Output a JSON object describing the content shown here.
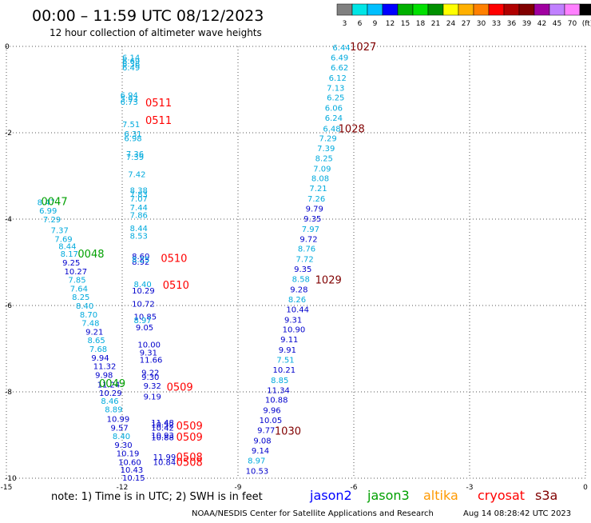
{
  "header": {
    "title": "00:00 – 11:59 UTC 08/12/2023",
    "subtitle": "12 hour collection of altimeter wave heights"
  },
  "colorbar": {
    "labels": [
      "3",
      "6",
      "9",
      "12",
      "15",
      "18",
      "21",
      "24",
      "27",
      "30",
      "33",
      "36",
      "39",
      "42",
      "45",
      "70",
      "(ft)"
    ],
    "colors": [
      "#808080",
      "#00e5e5",
      "#00bfff",
      "#0000ff",
      "#00b000",
      "#00e000",
      "#009000",
      "#ffff00",
      "#ffb000",
      "#ff8000",
      "#ff0000",
      "#b00000",
      "#800000",
      "#a000a0",
      "#c080ff",
      "#ff80ff",
      "#000000"
    ]
  },
  "footer": {
    "note": "note: 1) Time is in UTC; 2) SWH is in feet",
    "credit": "NOAA/NESDIS Center for Satellite Applications and Research",
    "timestamp": "Aug 14 08:28:42 UTC 2023",
    "missions": [
      {
        "name": "jason2",
        "color": "#0000ff"
      },
      {
        "name": "jason3",
        "color": "#00a000"
      },
      {
        "name": "altika",
        "color": "#ff9900"
      },
      {
        "name": "cryosat",
        "color": "#ff0000"
      },
      {
        "name": "s3a",
        "color": "#800000"
      }
    ]
  },
  "chart_data": {
    "type": "scatter",
    "title": "00:00 – 11:59 UTC 08/12/2023",
    "xlim": [
      -15,
      0
    ],
    "ylim": [
      -10,
      0
    ],
    "x_ticks": [
      -15,
      -12,
      -9,
      -6,
      -3,
      0
    ],
    "y_ticks": [
      0,
      -2,
      -4,
      -6,
      -8,
      -10
    ],
    "grid": true,
    "colors": {
      "c1": "#00aadd",
      "c2": "#0000cc",
      "pass_red": "#ff0000",
      "pass_green": "#00a000",
      "pass_maroon": "#800000"
    },
    "points": [
      {
        "x": -12.0,
        "y": -0.25,
        "v": "6.14",
        "c": "c1"
      },
      {
        "x": -12.0,
        "y": -0.33,
        "v": "6.69",
        "c": "c1"
      },
      {
        "x": -12.0,
        "y": -0.4,
        "v": "6.36",
        "c": "c1"
      },
      {
        "x": -12.0,
        "y": -0.48,
        "v": "6.49",
        "c": "c1"
      },
      {
        "x": -12.05,
        "y": -1.12,
        "v": "6.94",
        "c": "c1"
      },
      {
        "x": -12.05,
        "y": -1.2,
        "v": "5.93",
        "c": "c1"
      },
      {
        "x": -12.05,
        "y": -1.28,
        "v": "6.73",
        "c": "c1"
      },
      {
        "x": -12.0,
        "y": -1.8,
        "v": "7.51",
        "c": "c1"
      },
      {
        "x": -11.95,
        "y": -2.02,
        "v": "6.31",
        "c": "c1"
      },
      {
        "x": -11.95,
        "y": -2.12,
        "v": "6.98",
        "c": "c1"
      },
      {
        "x": -11.9,
        "y": -2.48,
        "v": "7.36",
        "c": "c1"
      },
      {
        "x": -11.9,
        "y": -2.56,
        "v": "7.39",
        "c": "c1"
      },
      {
        "x": -11.85,
        "y": -2.95,
        "v": "7.42",
        "c": "c1"
      },
      {
        "x": -11.8,
        "y": -3.32,
        "v": "8.38",
        "c": "c1"
      },
      {
        "x": -11.8,
        "y": -3.42,
        "v": "7.83",
        "c": "c1"
      },
      {
        "x": -11.8,
        "y": -3.52,
        "v": "7.07",
        "c": "c1"
      },
      {
        "x": -11.8,
        "y": -3.72,
        "v": "7.44",
        "c": "c1"
      },
      {
        "x": -11.8,
        "y": -3.9,
        "v": "7.86",
        "c": "c1"
      },
      {
        "x": -11.8,
        "y": -4.2,
        "v": "8.44",
        "c": "c1"
      },
      {
        "x": -11.8,
        "y": -4.38,
        "v": "8.53",
        "c": "c1"
      },
      {
        "x": -11.75,
        "y": -4.85,
        "v": "8.60",
        "c": "c2"
      },
      {
        "x": -11.75,
        "y": -4.98,
        "v": "8.92",
        "c": "c2"
      },
      {
        "x": -11.75,
        "y": -4.93,
        "v": "8.25",
        "c": "c1"
      },
      {
        "x": -11.7,
        "y": -5.5,
        "v": "8.40",
        "c": "c1"
      },
      {
        "x": -11.75,
        "y": -5.65,
        "v": "10.29",
        "c": "c2"
      },
      {
        "x": -11.75,
        "y": -5.95,
        "v": "10.72",
        "c": "c2"
      },
      {
        "x": -11.7,
        "y": -6.25,
        "v": "10.85",
        "c": "c2"
      },
      {
        "x": -11.7,
        "y": -6.33,
        "v": "8.97",
        "c": "c1"
      },
      {
        "x": -11.65,
        "y": -6.5,
        "v": "9.05",
        "c": "c2"
      },
      {
        "x": -11.6,
        "y": -6.9,
        "v": "10.00",
        "c": "c2"
      },
      {
        "x": -11.55,
        "y": -7.08,
        "v": "9.31",
        "c": "c2"
      },
      {
        "x": -11.55,
        "y": -7.25,
        "v": "11.66",
        "c": "c2"
      },
      {
        "x": -11.5,
        "y": -7.55,
        "v": "9.22",
        "c": "c2"
      },
      {
        "x": -11.5,
        "y": -7.65,
        "v": "9.30",
        "c": "c2"
      },
      {
        "x": -11.45,
        "y": -7.85,
        "v": "9.32",
        "c": "c2"
      },
      {
        "x": -11.45,
        "y": -8.1,
        "v": "9.19",
        "c": "c2"
      },
      {
        "x": -11.25,
        "y": -8.7,
        "v": "11.48",
        "c": "c2"
      },
      {
        "x": -11.25,
        "y": -8.82,
        "v": "10.42",
        "c": "c2"
      },
      {
        "x": -11.25,
        "y": -8.75,
        "v": "10.52",
        "c": "c2"
      },
      {
        "x": -11.25,
        "y": -9.0,
        "v": "10.93",
        "c": "c2"
      },
      {
        "x": -11.25,
        "y": -9.05,
        "v": "10.88",
        "c": "c2"
      },
      {
        "x": -11.2,
        "y": -9.5,
        "v": "11.99",
        "c": "c2"
      },
      {
        "x": -11.2,
        "y": -9.62,
        "v": "10.84",
        "c": "c2"
      },
      {
        "x": -14.2,
        "y": -3.6,
        "v": "8.47",
        "c": "c1"
      },
      {
        "x": -14.15,
        "y": -3.8,
        "v": "6.99",
        "c": "c1"
      },
      {
        "x": -14.05,
        "y": -4.0,
        "v": "7.29",
        "c": "c1"
      },
      {
        "x": -13.85,
        "y": -4.25,
        "v": "7.37",
        "c": "c1"
      },
      {
        "x": -13.75,
        "y": -4.45,
        "v": "7.69",
        "c": "c1"
      },
      {
        "x": -13.65,
        "y": -4.62,
        "v": "8.44",
        "c": "c1"
      },
      {
        "x": -13.6,
        "y": -4.8,
        "v": "8.17",
        "c": "c1"
      },
      {
        "x": -13.55,
        "y": -5.0,
        "v": "9.25",
        "c": "c2"
      },
      {
        "x": -13.5,
        "y": -5.2,
        "v": "10.27",
        "c": "c2"
      },
      {
        "x": -13.4,
        "y": -5.4,
        "v": "7.85",
        "c": "c1"
      },
      {
        "x": -13.35,
        "y": -5.6,
        "v": "7.64",
        "c": "c1"
      },
      {
        "x": -13.3,
        "y": -5.8,
        "v": "8.25",
        "c": "c1"
      },
      {
        "x": -13.2,
        "y": -6.0,
        "v": "8.40",
        "c": "c1"
      },
      {
        "x": -13.1,
        "y": -6.2,
        "v": "8.70",
        "c": "c1"
      },
      {
        "x": -13.05,
        "y": -6.4,
        "v": "7.48",
        "c": "c1"
      },
      {
        "x": -12.95,
        "y": -6.6,
        "v": "9.21",
        "c": "c2"
      },
      {
        "x": -12.9,
        "y": -6.8,
        "v": "8.65",
        "c": "c1"
      },
      {
        "x": -12.85,
        "y": -7.0,
        "v": "7.68",
        "c": "c1"
      },
      {
        "x": -12.8,
        "y": -7.2,
        "v": "9.94",
        "c": "c2"
      },
      {
        "x": -12.75,
        "y": -7.4,
        "v": "11.32",
        "c": "c2"
      },
      {
        "x": -12.7,
        "y": -7.6,
        "v": "9.98",
        "c": "c2"
      },
      {
        "x": -12.65,
        "y": -7.82,
        "v": "11.24",
        "c": "c2"
      },
      {
        "x": -12.6,
        "y": -8.02,
        "v": "10.29",
        "c": "c2"
      },
      {
        "x": -12.55,
        "y": -8.2,
        "v": "8.46",
        "c": "c1"
      },
      {
        "x": -12.45,
        "y": -8.4,
        "v": "8.89",
        "c": "c1"
      },
      {
        "x": -12.4,
        "y": -8.62,
        "v": "10.99",
        "c": "c2"
      },
      {
        "x": -12.3,
        "y": -8.82,
        "v": "9.57",
        "c": "c2"
      },
      {
        "x": -12.25,
        "y": -9.02,
        "v": "8.40",
        "c": "c1"
      },
      {
        "x": -12.2,
        "y": -9.22,
        "v": "9.30",
        "c": "c2"
      },
      {
        "x": -12.15,
        "y": -9.42,
        "v": "10.19",
        "c": "c2"
      },
      {
        "x": -12.1,
        "y": -9.62,
        "v": "10.60",
        "c": "c2"
      },
      {
        "x": -12.05,
        "y": -9.8,
        "v": "10.43",
        "c": "c2"
      },
      {
        "x": -12.0,
        "y": -9.98,
        "v": "10.15",
        "c": "c2"
      },
      {
        "x": -6.55,
        "y": -0.02,
        "v": "6.44",
        "c": "c1"
      },
      {
        "x": -6.6,
        "y": -0.25,
        "v": "6.49",
        "c": "c1"
      },
      {
        "x": -6.6,
        "y": -0.48,
        "v": "6.62",
        "c": "c1"
      },
      {
        "x": -6.65,
        "y": -0.72,
        "v": "6.12",
        "c": "c1"
      },
      {
        "x": -6.7,
        "y": -0.95,
        "v": "7.13",
        "c": "c1"
      },
      {
        "x": -6.7,
        "y": -1.18,
        "v": "6.25",
        "c": "c1"
      },
      {
        "x": -6.75,
        "y": -1.42,
        "v": "6.06",
        "c": "c1"
      },
      {
        "x": -6.75,
        "y": -1.65,
        "v": "6.24",
        "c": "c1"
      },
      {
        "x": -6.8,
        "y": -1.9,
        "v": "6.48",
        "c": "c1"
      },
      {
        "x": -6.9,
        "y": -2.12,
        "v": "7.29",
        "c": "c1"
      },
      {
        "x": -6.95,
        "y": -2.35,
        "v": "7.39",
        "c": "c1"
      },
      {
        "x": -7.0,
        "y": -2.58,
        "v": "8.25",
        "c": "c1"
      },
      {
        "x": -7.05,
        "y": -2.82,
        "v": "7.09",
        "c": "c1"
      },
      {
        "x": -7.1,
        "y": -3.05,
        "v": "8.08",
        "c": "c1"
      },
      {
        "x": -7.15,
        "y": -3.28,
        "v": "7.21",
        "c": "c1"
      },
      {
        "x": -7.2,
        "y": -3.52,
        "v": "7.26",
        "c": "c1"
      },
      {
        "x": -7.25,
        "y": -3.75,
        "v": "9.79",
        "c": "c2"
      },
      {
        "x": -7.3,
        "y": -3.98,
        "v": "9.35",
        "c": "c2"
      },
      {
        "x": -7.35,
        "y": -4.22,
        "v": "7.97",
        "c": "c1"
      },
      {
        "x": -7.4,
        "y": -4.45,
        "v": "9.72",
        "c": "c2"
      },
      {
        "x": -7.45,
        "y": -4.68,
        "v": "8.76",
        "c": "c1"
      },
      {
        "x": -7.5,
        "y": -4.92,
        "v": "7.72",
        "c": "c1"
      },
      {
        "x": -7.55,
        "y": -5.15,
        "v": "9.35",
        "c": "c2"
      },
      {
        "x": -7.6,
        "y": -5.38,
        "v": "8.58",
        "c": "c1"
      },
      {
        "x": -7.65,
        "y": -5.62,
        "v": "9.28",
        "c": "c2"
      },
      {
        "x": -7.7,
        "y": -5.85,
        "v": "8.26",
        "c": "c1"
      },
      {
        "x": -7.75,
        "y": -6.08,
        "v": "10.44",
        "c": "c2"
      },
      {
        "x": -7.8,
        "y": -6.32,
        "v": "9.31",
        "c": "c2"
      },
      {
        "x": -7.85,
        "y": -6.55,
        "v": "10.90",
        "c": "c2"
      },
      {
        "x": -7.9,
        "y": -6.78,
        "v": "9.11",
        "c": "c2"
      },
      {
        "x": -7.95,
        "y": -7.02,
        "v": "9.91",
        "c": "c2"
      },
      {
        "x": -8.0,
        "y": -7.25,
        "v": "7.51",
        "c": "c1"
      },
      {
        "x": -8.1,
        "y": -7.48,
        "v": "10.21",
        "c": "c2"
      },
      {
        "x": -8.15,
        "y": -7.72,
        "v": "8.85",
        "c": "c1"
      },
      {
        "x": -8.25,
        "y": -7.95,
        "v": "11.34",
        "c": "c2"
      },
      {
        "x": -8.3,
        "y": -8.18,
        "v": "10.88",
        "c": "c2"
      },
      {
        "x": -8.35,
        "y": -8.42,
        "v": "9.96",
        "c": "c2"
      },
      {
        "x": -8.45,
        "y": -8.65,
        "v": "10.05",
        "c": "c2"
      },
      {
        "x": -8.5,
        "y": -8.88,
        "v": "9.77",
        "c": "c2"
      },
      {
        "x": -8.6,
        "y": -9.12,
        "v": "9.08",
        "c": "c2"
      },
      {
        "x": -8.65,
        "y": -9.35,
        "v": "9.14",
        "c": "c2"
      },
      {
        "x": -8.75,
        "y": -9.58,
        "v": "8.97",
        "c": "c1"
      },
      {
        "x": -8.8,
        "y": -9.82,
        "v": "10.53",
        "c": "c2"
      }
    ],
    "pass_labels": [
      {
        "x": -11.4,
        "y": -1.3,
        "text": "0511",
        "c": "pass_red"
      },
      {
        "x": -11.4,
        "y": -1.7,
        "text": "0511",
        "c": "pass_red"
      },
      {
        "x": -11.0,
        "y": -4.9,
        "text": "0510",
        "c": "pass_red"
      },
      {
        "x": -10.95,
        "y": -5.52,
        "text": "0510",
        "c": "pass_red"
      },
      {
        "x": -10.85,
        "y": -7.88,
        "text": "0509",
        "c": "pass_red"
      },
      {
        "x": -10.6,
        "y": -8.78,
        "text": "0509",
        "c": "pass_red"
      },
      {
        "x": -10.6,
        "y": -9.04,
        "text": "0509",
        "c": "pass_red"
      },
      {
        "x": -10.6,
        "y": -9.5,
        "text": "0508",
        "c": "pass_red"
      },
      {
        "x": -10.6,
        "y": -9.62,
        "text": "0508",
        "c": "pass_red"
      },
      {
        "x": -14.1,
        "y": -3.58,
        "text": "0047",
        "c": "pass_green"
      },
      {
        "x": -13.15,
        "y": -4.8,
        "text": "0048",
        "c": "pass_green"
      },
      {
        "x": -12.6,
        "y": -7.8,
        "text": "0049",
        "c": "pass_green"
      },
      {
        "x": -6.1,
        "y": 0.0,
        "text": "1027",
        "c": "pass_maroon"
      },
      {
        "x": -6.4,
        "y": -1.9,
        "text": "1028",
        "c": "pass_maroon"
      },
      {
        "x": -7.0,
        "y": -5.4,
        "text": "1029",
        "c": "pass_maroon"
      },
      {
        "x": -8.05,
        "y": -8.9,
        "text": "1030",
        "c": "pass_maroon"
      }
    ]
  }
}
